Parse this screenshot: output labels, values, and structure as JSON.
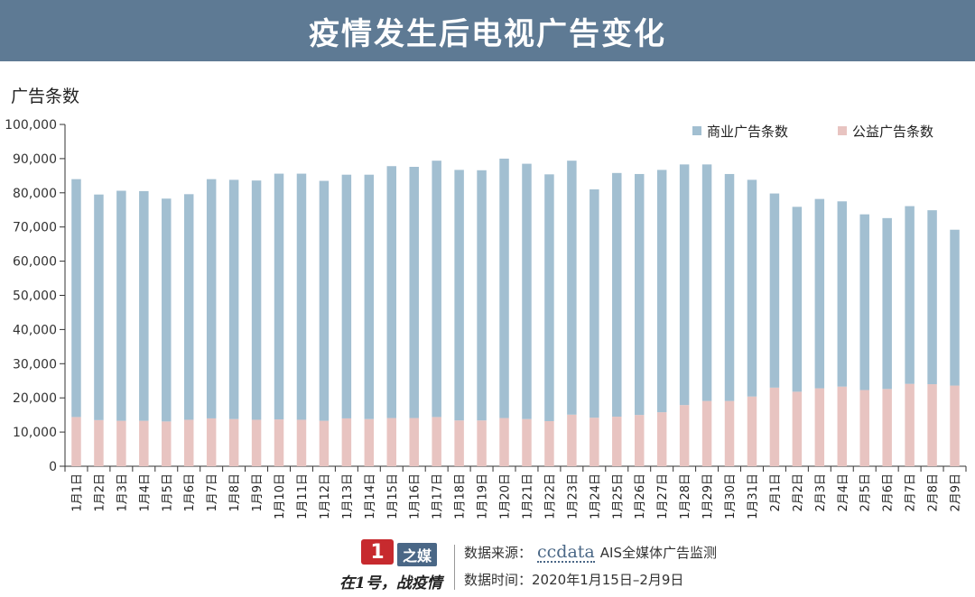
{
  "title": "疫情发生后电视广告变化",
  "chart_data": {
    "type": "bar",
    "stacked": true,
    "ylabel": "广告条数",
    "ylim": [
      0,
      100000
    ],
    "yticks": [
      "0",
      "10,000",
      "20,000",
      "30,000",
      "40,000",
      "50,000",
      "60,000",
      "70,000",
      "80,000",
      "90,000",
      "100,000"
    ],
    "yticks_values": [
      0,
      10000,
      20000,
      30000,
      40000,
      50000,
      60000,
      70000,
      80000,
      90000,
      100000
    ],
    "legend_position": "top-right",
    "categories": [
      "1月1日",
      "1月2日",
      "1月3日",
      "1月4日",
      "1月5日",
      "1月6日",
      "1月7日",
      "1月8日",
      "1月9日",
      "1月10日",
      "1月11日",
      "1月12日",
      "1月13日",
      "1月14日",
      "1月15日",
      "1月16日",
      "1月17日",
      "1月18日",
      "1月19日",
      "1月20日",
      "1月21日",
      "1月22日",
      "1月23日",
      "1月24日",
      "1月25日",
      "1月26日",
      "1月27日",
      "1月28日",
      "1月29日",
      "1月30日",
      "1月31日",
      "2月1日",
      "2月2日",
      "2月3日",
      "2月4日",
      "2月5日",
      "2月6日",
      "2月7日",
      "2月8日",
      "2月9日"
    ],
    "series": [
      {
        "name": "公益广告条数",
        "color": "#e8c4c1",
        "values": [
          14400,
          13500,
          13300,
          13300,
          13100,
          13600,
          14000,
          13800,
          13600,
          13700,
          13600,
          13300,
          14000,
          13800,
          14100,
          14100,
          14400,
          13400,
          13400,
          14100,
          13800,
          13200,
          15100,
          14200,
          14500,
          15000,
          15800,
          17900,
          19100,
          19100,
          20400,
          23000,
          21800,
          22800,
          23300,
          22300,
          22600,
          24100,
          24000,
          23600
        ]
      },
      {
        "name": "商业广告条数",
        "color": "#a2bfd1",
        "values": [
          69600,
          66000,
          67300,
          67200,
          65200,
          66000,
          70000,
          70000,
          70000,
          71900,
          72000,
          70200,
          71300,
          71500,
          73700,
          73500,
          75000,
          73300,
          73200,
          75900,
          74700,
          72200,
          74300,
          66800,
          71300,
          70500,
          70900,
          70400,
          69200,
          66400,
          63400,
          56800,
          54100,
          55400,
          54200,
          51400,
          50000,
          52000,
          50900,
          45600
        ]
      }
    ]
  },
  "footer": {
    "logo_mark": "1",
    "logo_text": "之媒",
    "slogan": "在1号，战疫情",
    "source_label": "数据来源：",
    "source_logo": "ccdata",
    "source_name": "AIS全媒体广告监测",
    "time_label": "数据时间：",
    "time_value": "2020年1月15日–2月9日"
  }
}
